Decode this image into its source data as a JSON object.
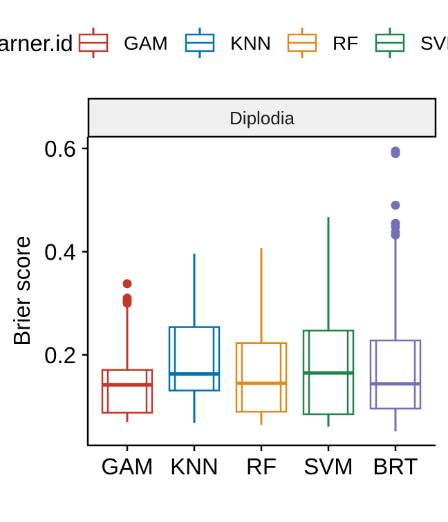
{
  "legend": {
    "title": "learner.id",
    "items": [
      {
        "label": "GAM",
        "color": "#c0392b"
      },
      {
        "label": "KNN",
        "color": "#0072b2"
      },
      {
        "label": "RF",
        "color": "#e08a1e"
      },
      {
        "label": "SVM",
        "color": "#1e8449"
      }
    ]
  },
  "chart_data": {
    "type": "boxplot",
    "facet_label": "Diplodia",
    "ylabel": "Brier score",
    "xlabel": "",
    "ylim": [
      0.04,
      0.62
    ],
    "yticks": [
      0.2,
      0.4,
      0.6
    ],
    "ytick_labels": [
      "0.2",
      "0.4",
      "0.6"
    ],
    "categories": [
      "GAM",
      "KNN",
      "RF",
      "SVM",
      "BRT"
    ],
    "colors": [
      "#c0392b",
      "#0072b2",
      "#e08a1e",
      "#1e8449",
      "#7570b3"
    ],
    "boxes": [
      {
        "name": "GAM",
        "whisker_low": 0.07,
        "q1": 0.088,
        "median": 0.142,
        "q3": 0.171,
        "whisker_high": 0.295,
        "outliers": [
          0.3,
          0.305,
          0.31,
          0.338
        ]
      },
      {
        "name": "KNN",
        "whisker_low": 0.068,
        "q1": 0.131,
        "median": 0.163,
        "q3": 0.254,
        "whisker_high": 0.396,
        "outliers": []
      },
      {
        "name": "RF",
        "whisker_low": 0.064,
        "q1": 0.09,
        "median": 0.145,
        "q3": 0.223,
        "whisker_high": 0.407,
        "outliers": []
      },
      {
        "name": "SVM",
        "whisker_low": 0.061,
        "q1": 0.085,
        "median": 0.165,
        "q3": 0.247,
        "whisker_high": 0.467,
        "outliers": []
      },
      {
        "name": "BRT",
        "whisker_low": 0.052,
        "q1": 0.096,
        "median": 0.144,
        "q3": 0.228,
        "whisker_high": 0.427,
        "outliers": [
          0.432,
          0.438,
          0.448,
          0.455,
          0.49,
          0.59,
          0.595
        ]
      }
    ],
    "grid": false,
    "legend_position": "top"
  }
}
